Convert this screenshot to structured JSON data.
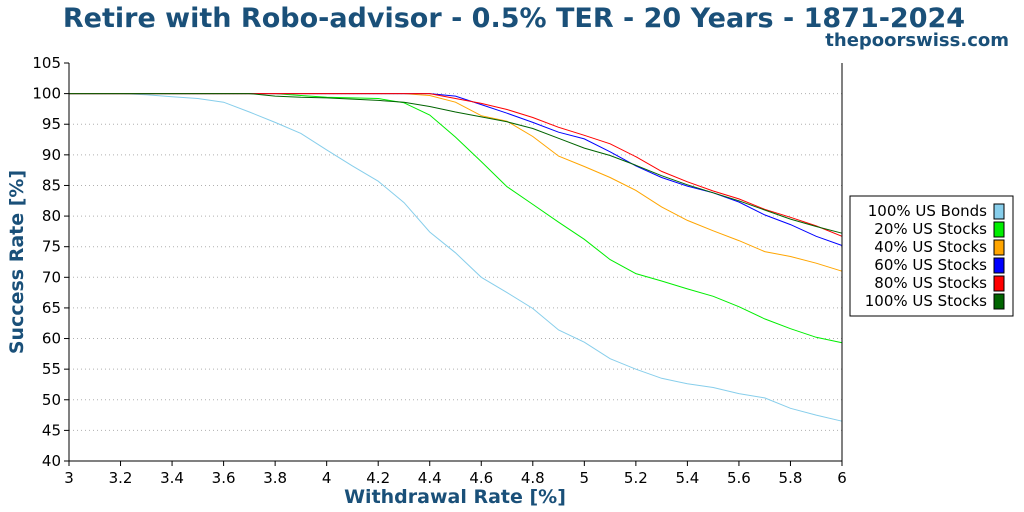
{
  "chart_data": {
    "type": "line",
    "title": "Retire with Robo-advisor - 0.5% TER - 20 Years - 1871-2024",
    "subtitle": "thepoorswiss.com",
    "xlabel": "Withdrawal Rate [%]",
    "ylabel": "Success Rate [%]",
    "xlim": [
      3,
      6
    ],
    "ylim": [
      40,
      105
    ],
    "x_ticks": [
      "3",
      "3.2",
      "3.4",
      "3.6",
      "3.8",
      "4",
      "4.2",
      "4.4",
      "4.6",
      "4.8",
      "5",
      "5.2",
      "5.4",
      "5.6",
      "5.8",
      "6"
    ],
    "y_ticks": [
      "40",
      "45",
      "50",
      "55",
      "60",
      "65",
      "70",
      "75",
      "80",
      "85",
      "90",
      "95",
      "100",
      "105"
    ],
    "grid": "horizontal dotted",
    "legend_position": "right",
    "x": [
      3.0,
      3.1,
      3.2,
      3.3,
      3.4,
      3.5,
      3.6,
      3.7,
      3.8,
      3.9,
      4.0,
      4.1,
      4.2,
      4.3,
      4.4,
      4.5,
      4.6,
      4.7,
      4.8,
      4.9,
      5.0,
      5.1,
      5.2,
      5.3,
      5.4,
      5.5,
      5.6,
      5.7,
      5.8,
      5.9,
      6.0
    ],
    "series": [
      {
        "name": "100% US Bonds",
        "color": "#87ceeb",
        "values": [
          100,
          100,
          100,
          99.8,
          99.5,
          99.2,
          98.6,
          97.0,
          95.3,
          93.5,
          90.8,
          88.2,
          85.7,
          82.2,
          77.4,
          74.0,
          70.0,
          67.5,
          64.9,
          61.4,
          59.4,
          56.7,
          55.0,
          53.5,
          52.6,
          52.0,
          51.0,
          50.3,
          48.6,
          47.5,
          46.5
        ]
      },
      {
        "name": "20% US Stocks",
        "color": "#00ee00",
        "values": [
          100,
          100,
          100,
          100,
          100,
          100,
          100,
          100,
          100,
          99.7,
          99.4,
          99.3,
          99.2,
          98.5,
          96.5,
          92.9,
          88.9,
          84.8,
          81.9,
          79.0,
          76.2,
          72.9,
          70.6,
          69.4,
          68.1,
          66.9,
          65.2,
          63.2,
          61.6,
          60.2,
          59.3
        ]
      },
      {
        "name": "40% US Stocks",
        "color": "#ffa500",
        "values": [
          100,
          100,
          100,
          100,
          100,
          100,
          100,
          100,
          100,
          100,
          100,
          100,
          100,
          100,
          99.7,
          98.6,
          96.4,
          95.5,
          93.0,
          89.8,
          88.1,
          86.3,
          84.2,
          81.5,
          79.3,
          77.6,
          76.0,
          74.2,
          73.4,
          72.3,
          71.0
        ]
      },
      {
        "name": "60% US Stocks",
        "color": "#0000ff",
        "values": [
          100,
          100,
          100,
          100,
          100,
          100,
          100,
          100,
          100,
          100,
          100,
          100,
          100,
          100,
          100,
          99.6,
          98.2,
          96.8,
          95.3,
          93.7,
          92.6,
          90.5,
          88.2,
          86.3,
          84.9,
          83.8,
          82.3,
          80.2,
          78.6,
          76.7,
          75.2
        ]
      },
      {
        "name": "80% US Stocks",
        "color": "#ff0000",
        "values": [
          100,
          100,
          100,
          100,
          100,
          100,
          100,
          100,
          100,
          100,
          100,
          100,
          100,
          100,
          100,
          99.2,
          98.4,
          97.4,
          96.1,
          94.5,
          93.2,
          91.8,
          89.7,
          87.3,
          85.6,
          84.1,
          82.8,
          81.1,
          79.8,
          78.4,
          76.7
        ]
      },
      {
        "name": "100% US Stocks",
        "color": "#006400",
        "values": [
          100,
          100,
          100,
          100,
          100,
          100,
          100,
          100,
          99.6,
          99.4,
          99.3,
          99.1,
          98.9,
          98.6,
          97.9,
          97.0,
          96.2,
          95.4,
          94.3,
          92.7,
          91.1,
          89.9,
          88.3,
          86.6,
          85.1,
          83.8,
          82.5,
          81.0,
          79.5,
          78.3,
          77.2
        ]
      }
    ]
  }
}
